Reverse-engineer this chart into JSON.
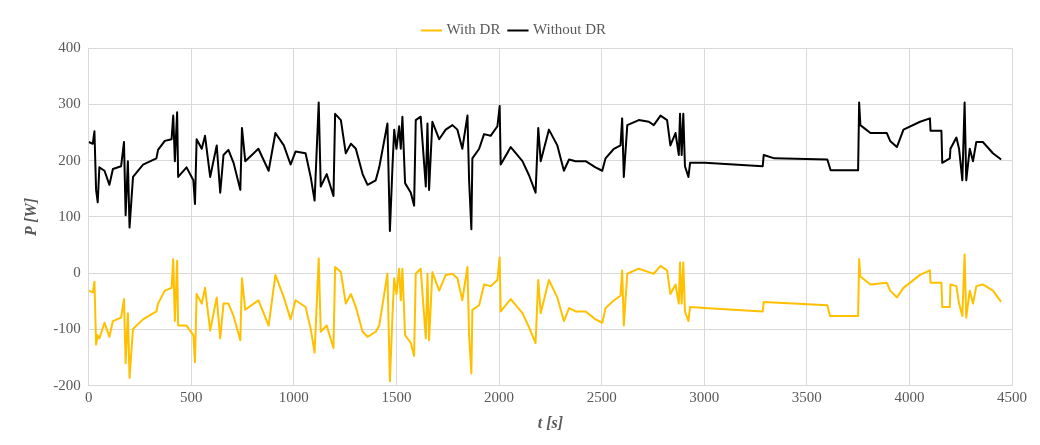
{
  "chart_data": {
    "type": "line",
    "xlabel": "t [s]",
    "ylabel": "P [W]",
    "xlim": [
      0,
      4500
    ],
    "xticks": [
      0,
      500,
      1000,
      1500,
      2000,
      2500,
      3000,
      3500,
      4000,
      4500
    ],
    "ylim": [
      -200,
      400
    ],
    "yticks": [
      -200,
      -100,
      0,
      100,
      200,
      300,
      400
    ],
    "grid": true,
    "legend": "top",
    "marker": "none",
    "line_style": "solid",
    "series": [
      {
        "name": "With DR",
        "color": "#ffc000",
        "x": [
          0,
          20,
          28,
          36,
          44,
          52,
          77,
          101,
          118,
          158,
          172,
          180,
          191,
          199,
          216,
          265,
          330,
          338,
          371,
          404,
          412,
          420,
          431,
          436,
          477,
          510,
          518,
          526,
          551,
          567,
          592,
          624,
          641,
          657,
          681,
          706,
          739,
          747,
          763,
          827,
          877,
          910,
          951,
          984,
          1008,
          1057,
          1082,
          1101,
          1121,
          1131,
          1160,
          1193,
          1201,
          1229,
          1253,
          1278,
          1302,
          1335,
          1359,
          1399,
          1416,
          1456,
          1468,
          1481,
          1489,
          1500,
          1513,
          1521,
          1529,
          1542,
          1570,
          1586,
          1594,
          1618,
          1643,
          1651,
          1659,
          1675,
          1708,
          1740,
          1773,
          1797,
          1821,
          1846,
          1854,
          1865,
          1870,
          1903,
          1927,
          1959,
          1992,
          2003,
          2008,
          2057,
          2114,
          2146,
          2178,
          2191,
          2203,
          2243,
          2284,
          2316,
          2341,
          2373,
          2422,
          2470,
          2503,
          2519,
          2560,
          2592,
          2600,
          2608,
          2625,
          2681,
          2730,
          2754,
          2787,
          2819,
          2835,
          2860,
          2876,
          2882,
          2890,
          2898,
          2906,
          2923,
          2931,
          3003,
          3285,
          3290,
          3600,
          3613,
          3750,
          3755,
          3761,
          3810,
          3890,
          3906,
          3939,
          3971,
          4052,
          4100,
          4103,
          4156,
          4160,
          4197,
          4200,
          4229,
          4242,
          4258,
          4269,
          4277,
          4294,
          4310,
          4326,
          4358,
          4407,
          4447
        ],
        "values": [
          -31,
          -34,
          -15,
          -127,
          -110,
          -116,
          -88,
          -113,
          -85,
          -79,
          -46,
          -160,
          -71,
          -186,
          -99,
          -82,
          -68,
          -54,
          -31,
          -26,
          25,
          -85,
          22,
          -93,
          -93,
          -110,
          -158,
          -37,
          -54,
          -26,
          -102,
          -43,
          -116,
          -54,
          -54,
          -76,
          -119,
          -9,
          -65,
          -48,
          -93,
          -3,
          -43,
          -82,
          -48,
          -60,
          -99,
          -141,
          26,
          -104,
          -93,
          -133,
          11,
          2,
          -54,
          -37,
          -60,
          -104,
          -113,
          -104,
          -93,
          -1,
          -192,
          -71,
          -9,
          -37,
          8,
          -48,
          8,
          -110,
          -124,
          -147,
          -1,
          8,
          -116,
          -1,
          -119,
          2,
          -31,
          -3,
          -1,
          -9,
          -48,
          11,
          -110,
          -178,
          -65,
          -57,
          -20,
          -23,
          -12,
          28,
          -68,
          -46,
          -71,
          -96,
          -124,
          -12,
          -71,
          -12,
          -43,
          -85,
          -62,
          -68,
          -68,
          -82,
          -88,
          -62,
          -48,
          -40,
          5,
          -93,
          -1,
          8,
          2,
          -1,
          13,
          5,
          -37,
          -20,
          -54,
          19,
          -54,
          19,
          -68,
          -85,
          -60,
          -62,
          -68,
          -51,
          -57,
          -76,
          -76,
          25,
          -6,
          -20,
          -17,
          -31,
          -43,
          -26,
          -3,
          5,
          -17,
          -17,
          -60,
          -60,
          -20,
          -23,
          -54,
          -76,
          33,
          -79,
          -31,
          -54,
          -23,
          -20,
          -31,
          -51
        ]
      },
      {
        "name": "Without DR",
        "color": "#000000",
        "x": [
          0,
          20,
          28,
          36,
          44,
          52,
          77,
          101,
          118,
          158,
          172,
          180,
          191,
          199,
          216,
          265,
          330,
          338,
          371,
          404,
          412,
          420,
          431,
          436,
          477,
          510,
          518,
          526,
          551,
          567,
          592,
          624,
          641,
          657,
          681,
          706,
          739,
          747,
          763,
          827,
          877,
          910,
          951,
          984,
          1008,
          1057,
          1082,
          1101,
          1121,
          1131,
          1160,
          1193,
          1201,
          1229,
          1253,
          1278,
          1302,
          1335,
          1359,
          1399,
          1416,
          1456,
          1468,
          1481,
          1489,
          1500,
          1513,
          1521,
          1529,
          1542,
          1570,
          1586,
          1594,
          1618,
          1643,
          1651,
          1659,
          1675,
          1708,
          1740,
          1773,
          1797,
          1821,
          1846,
          1854,
          1865,
          1870,
          1903,
          1927,
          1959,
          1992,
          2003,
          2008,
          2057,
          2114,
          2146,
          2178,
          2191,
          2203,
          2243,
          2284,
          2316,
          2341,
          2373,
          2422,
          2470,
          2503,
          2519,
          2560,
          2592,
          2600,
          2608,
          2625,
          2681,
          2730,
          2754,
          2787,
          2819,
          2835,
          2860,
          2876,
          2882,
          2890,
          2898,
          2906,
          2923,
          2931,
          3003,
          3285,
          3290,
          3342,
          3600,
          3616,
          3750,
          3755,
          3761,
          3810,
          3890,
          3906,
          3939,
          3971,
          4052,
          4100,
          4103,
          4156,
          4160,
          4197,
          4200,
          4229,
          4242,
          4258,
          4269,
          4277,
          4294,
          4310,
          4326,
          4358,
          4407,
          4447
        ],
        "values": [
          233,
          230,
          252,
          148,
          126,
          188,
          182,
          157,
          185,
          190,
          233,
          103,
          199,
          81,
          171,
          193,
          204,
          219,
          235,
          238,
          280,
          199,
          286,
          171,
          188,
          165,
          123,
          238,
          221,
          244,
          171,
          227,
          143,
          210,
          219,
          196,
          148,
          258,
          199,
          221,
          182,
          249,
          227,
          193,
          216,
          213,
          171,
          129,
          303,
          154,
          176,
          137,
          283,
          272,
          213,
          230,
          221,
          176,
          157,
          165,
          188,
          266,
          75,
          193,
          255,
          221,
          261,
          221,
          278,
          160,
          143,
          120,
          272,
          278,
          154,
          266,
          148,
          269,
          238,
          255,
          263,
          255,
          221,
          280,
          165,
          78,
          204,
          221,
          247,
          244,
          261,
          297,
          193,
          224,
          199,
          174,
          143,
          258,
          199,
          255,
          227,
          182,
          202,
          199,
          199,
          188,
          182,
          204,
          221,
          227,
          275,
          171,
          263,
          272,
          269,
          263,
          280,
          272,
          227,
          249,
          210,
          283,
          210,
          283,
          190,
          171,
          196,
          196,
          190,
          210,
          204,
          202,
          183,
          183,
          303,
          263,
          249,
          249,
          235,
          224,
          255,
          269,
          275,
          253,
          253,
          196,
          204,
          221,
          241,
          221,
          165,
          303,
          165,
          221,
          199,
          233,
          233,
          213,
          202
        ]
      }
    ]
  }
}
